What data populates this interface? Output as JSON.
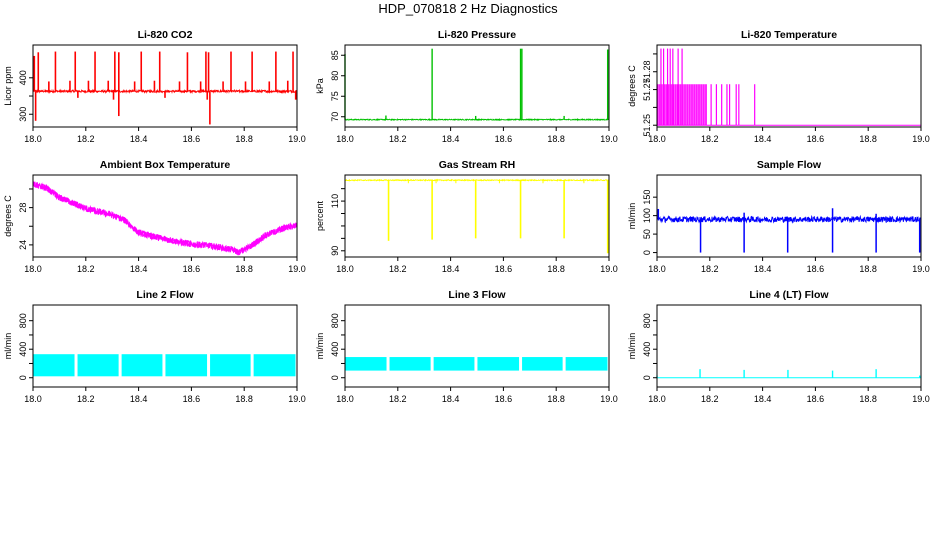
{
  "figure": {
    "title": "HDP_070818  2 Hz Diagnostics"
  },
  "chart_data": [
    {
      "id": "co2",
      "type": "line",
      "title": "Li-820 CO2",
      "xlabel": "",
      "ylabel": "Licor ppm",
      "color": "#ff0000",
      "xlim": [
        18.0,
        19.0
      ],
      "ylim": [
        265,
        490
      ],
      "xticks": [
        18.0,
        18.2,
        18.4,
        18.6,
        18.8,
        19.0
      ],
      "xtick_labels": [
        "18.0",
        "18.2",
        "18.4",
        "18.6",
        "18.8",
        "19.0"
      ],
      "yticks": [
        300,
        350,
        400
      ],
      "ytick_labels": [
        "300",
        "",
        "400"
      ],
      "baseline": 363,
      "noise": 3,
      "spikes": [
        {
          "x": 18.005,
          "y": 460
        },
        {
          "x": 18.02,
          "y": 470
        },
        {
          "x": 18.085,
          "y": 472
        },
        {
          "x": 18.16,
          "y": 472
        },
        {
          "x": 18.235,
          "y": 472
        },
        {
          "x": 18.31,
          "y": 472
        },
        {
          "x": 18.325,
          "y": 470
        },
        {
          "x": 18.41,
          "y": 472
        },
        {
          "x": 18.48,
          "y": 472
        },
        {
          "x": 18.585,
          "y": 470
        },
        {
          "x": 18.655,
          "y": 472
        },
        {
          "x": 18.665,
          "y": 470
        },
        {
          "x": 18.75,
          "y": 472
        },
        {
          "x": 18.83,
          "y": 472
        },
        {
          "x": 18.92,
          "y": 472
        },
        {
          "x": 18.985,
          "y": 472
        },
        {
          "x": 18.06,
          "y": 390
        },
        {
          "x": 18.14,
          "y": 392
        },
        {
          "x": 18.21,
          "y": 392
        },
        {
          "x": 18.285,
          "y": 392
        },
        {
          "x": 18.385,
          "y": 390
        },
        {
          "x": 18.46,
          "y": 392
        },
        {
          "x": 18.555,
          "y": 390
        },
        {
          "x": 18.635,
          "y": 390
        },
        {
          "x": 18.72,
          "y": 390
        },
        {
          "x": 18.805,
          "y": 390
        },
        {
          "x": 18.895,
          "y": 390
        },
        {
          "x": 18.965,
          "y": 392
        },
        {
          "x": 18.01,
          "y": 282
        },
        {
          "x": 18.325,
          "y": 295
        },
        {
          "x": 18.67,
          "y": 272
        },
        {
          "x": 18.66,
          "y": 340
        },
        {
          "x": 18.17,
          "y": 345
        },
        {
          "x": 18.5,
          "y": 345
        },
        {
          "x": 18.995,
          "y": 340
        },
        {
          "x": 18.305,
          "y": 340
        }
      ]
    },
    {
      "id": "pressure",
      "type": "line",
      "title": "Li-820 Pressure",
      "xlabel": "",
      "ylabel": "kPa",
      "color": "#00c000",
      "xlim": [
        18.0,
        19.0
      ],
      "ylim": [
        67.5,
        87.5
      ],
      "xticks": [
        18.0,
        18.2,
        18.4,
        18.6,
        18.8,
        19.0
      ],
      "xtick_labels": [
        "18.0",
        "18.2",
        "18.4",
        "18.6",
        "18.8",
        "19.0"
      ],
      "yticks": [
        70,
        75,
        80,
        85
      ],
      "ytick_labels": [
        "70",
        "75",
        "80",
        "85"
      ],
      "baseline": 69.3,
      "noise": 0.12,
      "spikes": [
        {
          "x": 18.0,
          "y": 85.3
        },
        {
          "x": 18.33,
          "y": 86.6
        },
        {
          "x": 18.665,
          "y": 86.6
        },
        {
          "x": 18.67,
          "y": 86.6
        },
        {
          "x": 18.995,
          "y": 86.4
        },
        {
          "x": 18.155,
          "y": 70.3
        },
        {
          "x": 18.495,
          "y": 70.2
        },
        {
          "x": 18.83,
          "y": 70.2
        }
      ]
    },
    {
      "id": "temperature",
      "type": "line",
      "title": "Li-820 Temperature",
      "xlabel": "",
      "ylabel": "degrees C",
      "color": "#ff00ff",
      "xlim": [
        18.0,
        19.0
      ],
      "ylim": [
        51.249,
        51.295
      ],
      "xticks": [
        18.0,
        18.2,
        18.4,
        18.6,
        18.8,
        19.0
      ],
      "xtick_labels": [
        "18.0",
        "18.2",
        "18.4",
        "18.6",
        "18.8",
        "19.0"
      ],
      "yticks": [
        51.25,
        51.26,
        51.27,
        51.28,
        51.29
      ],
      "ytick_labels": [
        "51.25",
        "",
        "51.27",
        "51.28",
        ""
      ],
      "baseline": 51.25,
      "dense_segment": {
        "from": 18.0,
        "to": 18.19,
        "high": 51.273
      },
      "tall_spikes": [
        18.015,
        18.025,
        18.04,
        18.05,
        18.06,
        18.08,
        18.095
      ],
      "tall_value": 51.293,
      "sparse_spikes": [
        18.205,
        18.225,
        18.245,
        18.265,
        18.275,
        18.3,
        18.31,
        18.37
      ]
    },
    {
      "id": "box_temp",
      "type": "line",
      "title": "Ambient Box Temperature",
      "xlabel": "",
      "ylabel": "degrees C",
      "color": "#ff00ff",
      "xlim": [
        18.0,
        19.0
      ],
      "ylim": [
        22.7,
        31.5
      ],
      "xticks": [
        18.0,
        18.2,
        18.4,
        18.6,
        18.8,
        19.0
      ],
      "xtick_labels": [
        "18.0",
        "18.2",
        "18.4",
        "18.6",
        "18.8",
        "19.0"
      ],
      "yticks": [
        24,
        26,
        28,
        30
      ],
      "ytick_labels": [
        "24",
        "",
        "28",
        ""
      ],
      "noise": 0.35,
      "trend": [
        [
          18.0,
          30.5
        ],
        [
          18.05,
          30.1
        ],
        [
          18.1,
          29.1
        ],
        [
          18.2,
          27.9
        ],
        [
          18.3,
          27.2
        ],
        [
          18.35,
          26.6
        ],
        [
          18.4,
          25.3
        ],
        [
          18.5,
          24.6
        ],
        [
          18.6,
          24.1
        ],
        [
          18.7,
          23.8
        ],
        [
          18.75,
          23.5
        ],
        [
          18.78,
          23.2
        ],
        [
          18.82,
          23.8
        ],
        [
          18.88,
          25.0
        ],
        [
          18.95,
          25.8
        ],
        [
          19.0,
          26.1
        ]
      ]
    },
    {
      "id": "gas_rh",
      "type": "line",
      "title": "Gas Stream RH",
      "xlabel": "",
      "ylabel": "percent",
      "color": "#ffff00",
      "xlim": [
        18.0,
        19.0
      ],
      "ylim": [
        87.5,
        120.5
      ],
      "xticks": [
        18.0,
        18.2,
        18.4,
        18.6,
        18.8,
        19.0
      ],
      "xtick_labels": [
        "18.0",
        "18.2",
        "18.4",
        "18.6",
        "18.8",
        "19.0"
      ],
      "yticks": [
        90,
        95,
        100,
        105,
        110,
        115
      ],
      "ytick_labels": [
        "90",
        "",
        "",
        "",
        "110",
        ""
      ],
      "baseline": 118.4,
      "noise": 0.2,
      "dips": [
        {
          "x": 18.165,
          "y": 94
        },
        {
          "x": 18.33,
          "y": 94.5
        },
        {
          "x": 18.495,
          "y": 95
        },
        {
          "x": 18.665,
          "y": 95
        },
        {
          "x": 18.83,
          "y": 95
        },
        {
          "x": 18.995,
          "y": 89
        }
      ],
      "tick_marks": [
        18.0,
        18.24,
        18.345,
        18.42,
        18.585,
        18.75,
        18.905
      ]
    },
    {
      "id": "sample_flow",
      "type": "line",
      "title": "Sample Flow",
      "xlabel": "",
      "ylabel": "ml/min",
      "color": "#0000ff",
      "xlim": [
        18.0,
        19.0
      ],
      "ylim": [
        -12,
        210
      ],
      "xticks": [
        18.0,
        18.2,
        18.4,
        18.6,
        18.8,
        19.0
      ],
      "xtick_labels": [
        "18.0",
        "18.2",
        "18.4",
        "18.6",
        "18.8",
        "19.0"
      ],
      "yticks": [
        0,
        50,
        100,
        150
      ],
      "ytick_labels": [
        "0",
        "50",
        "100",
        "150"
      ],
      "baseline": 90,
      "noise": 8,
      "dips": [
        {
          "x": 18.165,
          "y": 0
        },
        {
          "x": 18.33,
          "y": 0
        },
        {
          "x": 18.495,
          "y": 0
        },
        {
          "x": 18.665,
          "y": 0
        },
        {
          "x": 18.83,
          "y": 0
        },
        {
          "x": 18.995,
          "y": 0
        }
      ],
      "spikes": [
        {
          "x": 18.005,
          "y": 118
        },
        {
          "x": 18.665,
          "y": 120
        },
        {
          "x": 18.33,
          "y": 108
        },
        {
          "x": 18.83,
          "y": 105
        }
      ]
    },
    {
      "id": "line2_flow",
      "type": "line",
      "title": "Line 2 Flow",
      "xlabel": "",
      "ylabel": "ml/min",
      "color": "#00ffff",
      "xlim": [
        18.0,
        19.0
      ],
      "ylim": [
        -130,
        1020
      ],
      "xticks": [
        18.0,
        18.2,
        18.4,
        18.6,
        18.8,
        19.0
      ],
      "xtick_labels": [
        "18.0",
        "18.2",
        "18.4",
        "18.6",
        "18.8",
        "19.0"
      ],
      "yticks": [
        0,
        200,
        400,
        600,
        800
      ],
      "ytick_labels": [
        "0",
        "",
        "400",
        "",
        "800"
      ],
      "band": {
        "low": 20,
        "high": 330
      },
      "gaps": [
        18.163,
        18.33,
        18.496,
        18.665,
        18.83
      ]
    },
    {
      "id": "line3_flow",
      "type": "line",
      "title": "Line 3 Flow",
      "xlabel": "",
      "ylabel": "ml/min",
      "color": "#00ffff",
      "xlim": [
        18.0,
        19.0
      ],
      "ylim": [
        -130,
        1020
      ],
      "xticks": [
        18.0,
        18.2,
        18.4,
        18.6,
        18.8,
        19.0
      ],
      "xtick_labels": [
        "18.0",
        "18.2",
        "18.4",
        "18.6",
        "18.8",
        "19.0"
      ],
      "yticks": [
        0,
        200,
        400,
        600,
        800
      ],
      "ytick_labels": [
        "0",
        "",
        "400",
        "",
        "800"
      ],
      "band": {
        "low": 100,
        "high": 290
      },
      "gaps": [
        18.163,
        18.33,
        18.496,
        18.665,
        18.83
      ]
    },
    {
      "id": "line4_flow",
      "type": "line",
      "title": "Line 4 (LT) Flow",
      "xlabel": "",
      "ylabel": "ml/min",
      "color": "#00ffff",
      "xlim": [
        18.0,
        19.0
      ],
      "ylim": [
        -130,
        1020
      ],
      "xticks": [
        18.0,
        18.2,
        18.4,
        18.6,
        18.8,
        19.0
      ],
      "xtick_labels": [
        "18.0",
        "18.2",
        "18.4",
        "18.6",
        "18.8",
        "19.0"
      ],
      "yticks": [
        0,
        200,
        400,
        600,
        800
      ],
      "ytick_labels": [
        "0",
        "",
        "400",
        "",
        "800"
      ],
      "baseline": 0,
      "spikes": [
        {
          "x": 18.0,
          "y": 30
        },
        {
          "x": 18.163,
          "y": 120
        },
        {
          "x": 18.33,
          "y": 110
        },
        {
          "x": 18.496,
          "y": 110
        },
        {
          "x": 18.665,
          "y": 100
        },
        {
          "x": 18.83,
          "y": 120
        },
        {
          "x": 18.995,
          "y": 30
        }
      ]
    }
  ]
}
